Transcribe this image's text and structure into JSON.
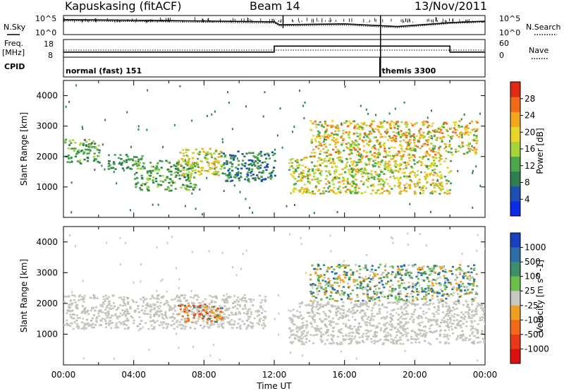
{
  "header": {
    "station": "Kapuskasing (fitACF)",
    "beam": "Beam 14",
    "date": "13/Nov/2011"
  },
  "strip_labels": {
    "nsky": "N.Sky",
    "nsearch": "N.Search",
    "freq_line1": "Freq.",
    "freq_line2": "[MHz]",
    "nave": "Nave",
    "cpid": "CPID",
    "noise_ticks_left": [
      "10^5",
      "10^0"
    ],
    "noise_ticks_right": [
      "10^5",
      "10^0"
    ],
    "freq_ticks_left": [
      "18",
      "8"
    ],
    "nave_ticks_right": [
      "60",
      "0"
    ],
    "cpid_entries": [
      {
        "label": "normal (fast) 151",
        "start_hour": 0
      },
      {
        "label": "themis 3300",
        "start_hour": 18
      }
    ]
  },
  "x_axis": {
    "label": "Time UT",
    "ticks": [
      "00:00",
      "04:00",
      "08:00",
      "12:00",
      "16:00",
      "20:00",
      "00:00"
    ]
  },
  "power_colorbar": {
    "label": "Power [dB]",
    "ticks": [
      "4",
      "8",
      "12",
      "16",
      "20",
      "24",
      "28"
    ],
    "colors": [
      "#0a2be8",
      "#1b4fb0",
      "#2e7d4f",
      "#4ca64c",
      "#a5d43a",
      "#e8d52a",
      "#f2a71f",
      "#f06a1a",
      "#e02a12"
    ]
  },
  "velocity_colorbar": {
    "label": "Velocity [m s^-1]",
    "ticks": [
      "1000",
      "500",
      "100",
      "25",
      "-25",
      "-100",
      "-500",
      "-1000"
    ],
    "colors": [
      "#1a3fbf",
      "#2a6fa8",
      "#3c8f6a",
      "#6cc04a",
      "#c8c8c0",
      "#f0a020",
      "#f06a1a",
      "#e83a18",
      "#e01010"
    ]
  },
  "chart_data": {
    "type": "heatmap",
    "title": "Kapuskasing (fitACF) Beam 14 13/Nov/2011",
    "xlabel": "Time UT",
    "ylabel": "Slant Range [km]",
    "xlim_hours": [
      0,
      24
    ],
    "ylim_km": [
      0,
      4500
    ],
    "y_ticks": [
      "1000",
      "2000",
      "3000",
      "4000"
    ],
    "panels": [
      {
        "name": "Power",
        "colorbar_label": "Power [dB]",
        "range_db": [
          0,
          30
        ],
        "echo_regions": [
          {
            "hours": [
              0.0,
              2.0
            ],
            "range_km": [
              1800,
              2600
            ],
            "level": "8-16"
          },
          {
            "hours": [
              2.5,
              4.5
            ],
            "range_km": [
              1600,
              2100
            ],
            "level": "8-12"
          },
          {
            "hours": [
              4.0,
              7.5
            ],
            "range_km": [
              900,
              1900
            ],
            "level": "8-16"
          },
          {
            "hours": [
              6.5,
              9.0
            ],
            "range_km": [
              1400,
              2300
            ],
            "level": "12-24"
          },
          {
            "hours": [
              9.0,
              12.0
            ],
            "range_km": [
              1200,
              2200
            ],
            "level": "4-12"
          },
          {
            "hours": [
              12.8,
              22.0
            ],
            "range_km": [
              800,
              2000
            ],
            "level": "12-24"
          },
          {
            "hours": [
              14.0,
              23.5
            ],
            "range_km": [
              2000,
              3200
            ],
            "level": "12-28"
          }
        ]
      },
      {
        "name": "Velocity",
        "colorbar_label": "Velocity [m s^-1]",
        "range_ms": [
          -1000,
          1000
        ],
        "echo_regions": [
          {
            "hours": [
              0.0,
              11.5
            ],
            "range_km": [
              1200,
              2300
            ],
            "level": "-25 to 25"
          },
          {
            "hours": [
              6.5,
              9.0
            ],
            "range_km": [
              1400,
              2000
            ],
            "level": "-500 to -100"
          },
          {
            "hours": [
              12.8,
              24.0
            ],
            "range_km": [
              700,
              2100
            ],
            "level": "-25 to 25"
          },
          {
            "hours": [
              14.0,
              23.5
            ],
            "range_km": [
              2100,
              3300
            ],
            "level": "25 to 500"
          }
        ]
      }
    ],
    "noise_sky_log": [
      [
        0,
        4.3
      ],
      [
        6,
        4.0
      ],
      [
        12,
        3.6
      ],
      [
        12.3,
        2.6
      ],
      [
        16,
        2.9
      ],
      [
        19,
        2.0
      ],
      [
        22,
        3.3
      ],
      [
        24,
        3.8
      ]
    ],
    "noise_search_log": [
      [
        0,
        3.9
      ],
      [
        6,
        3.6
      ],
      [
        12,
        3.2
      ],
      [
        12.3,
        2.2
      ],
      [
        16,
        2.5
      ],
      [
        19,
        1.6
      ],
      [
        22,
        3.0
      ],
      [
        24,
        3.5
      ]
    ],
    "freq_mhz": [
      [
        0,
        10.5
      ],
      [
        12,
        10.5
      ],
      [
        12,
        14.5
      ],
      [
        22,
        14.5
      ],
      [
        22,
        10.5
      ],
      [
        24,
        10.5
      ]
    ],
    "nave": [
      [
        0,
        23
      ],
      [
        24,
        23
      ]
    ]
  }
}
